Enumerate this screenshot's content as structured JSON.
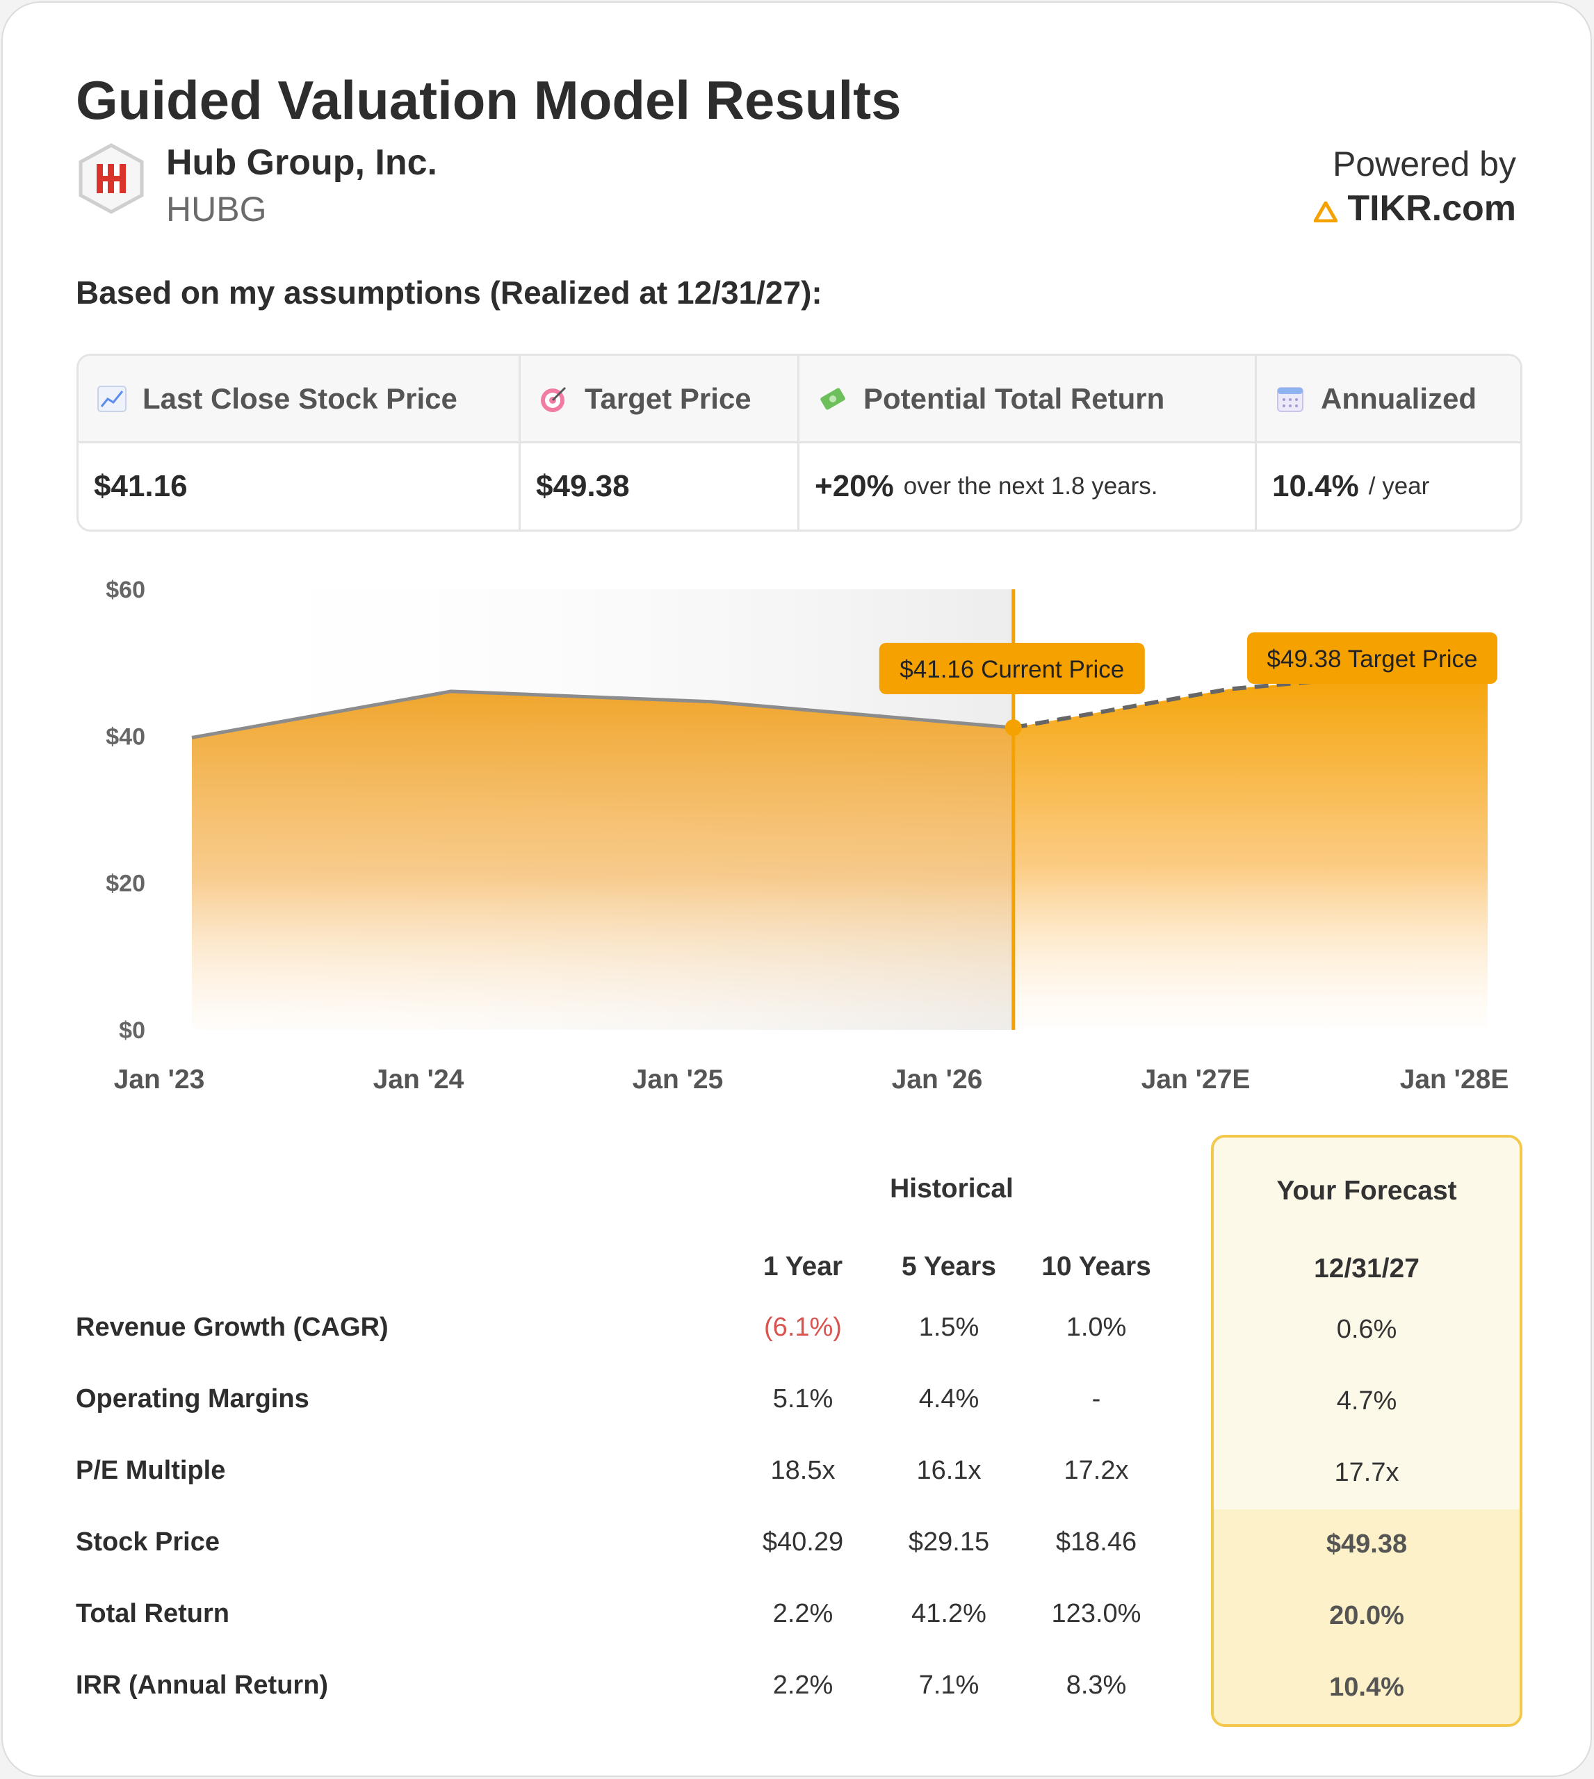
{
  "header": {
    "title": "Guided Valuation Model Results",
    "company_name": "Hub Group, Inc.",
    "ticker": "HUBG",
    "powered_by": "Powered by",
    "brand": "TIKR.com"
  },
  "assumptions_text": "Based on my assumptions (Realized at 12/31/27):",
  "summary": {
    "last_close": {
      "icon": "chart-up-icon",
      "label": "Last Close Stock Price",
      "value": "$41.16"
    },
    "target": {
      "icon": "target-icon",
      "label": "Target Price",
      "value": "$49.38"
    },
    "potential": {
      "icon": "money-icon",
      "label": "Potential Total Return",
      "value": "+20%",
      "suffix": "over the next 1.8 years."
    },
    "annualized": {
      "icon": "calendar-icon",
      "label": "Annualized",
      "value": "10.4%",
      "suffix": "/ year"
    }
  },
  "chart_data": {
    "type": "area",
    "x_labels": [
      "Jan '23",
      "Jan '24",
      "Jan '25",
      "Jan '26",
      "Jan '27E",
      "Jan '28E"
    ],
    "y_ticks": [
      "$60",
      "$40",
      "$20",
      "$0"
    ],
    "ylim": [
      0,
      60
    ],
    "historical": [
      {
        "x": 2023.12,
        "y": 39.8
      },
      {
        "x": 2024.12,
        "y": 46.1
      },
      {
        "x": 2025.12,
        "y": 44.7
      },
      {
        "x": 2026.29,
        "y": 41.16
      }
    ],
    "forecast": [
      {
        "x": 2026.29,
        "y": 41.16
      },
      {
        "x": 2027.12,
        "y": 46.4
      },
      {
        "x": 2027.5,
        "y": 47.6
      },
      {
        "x": 2028.12,
        "y": 49.38
      }
    ],
    "current_label": "$41.16 Current Price",
    "target_label": "$49.38 Target Price",
    "colors": {
      "accent": "#f5a201",
      "line": "#8c8c8c",
      "forecast_line": "#666666"
    }
  },
  "table": {
    "historical_header": "Historical",
    "forecast_header": "Your Forecast",
    "columns": [
      "1 Year",
      "5 Years",
      "10 Years"
    ],
    "forecast_date": "12/31/27",
    "rows": [
      {
        "label": "Revenue Growth (CAGR)",
        "values": [
          "(6.1%)",
          "1.5%",
          "1.0%"
        ],
        "forecast": "0.6%"
      },
      {
        "label": "Operating Margins",
        "values": [
          "5.1%",
          "4.4%",
          "-"
        ],
        "forecast": "4.7%"
      },
      {
        "label": "P/E Multiple",
        "values": [
          "18.5x",
          "16.1x",
          "17.2x"
        ],
        "forecast": "17.7x"
      },
      {
        "label": "Stock Price",
        "values": [
          "$40.29",
          "$29.15",
          "$18.46"
        ],
        "forecast": "$49.38"
      },
      {
        "label": "Total Return",
        "values": [
          "2.2%",
          "41.2%",
          "123.0%"
        ],
        "forecast": "20.0%"
      },
      {
        "label": "IRR (Annual Return)",
        "values": [
          "2.2%",
          "7.1%",
          "8.3%"
        ],
        "forecast": "10.4%"
      }
    ]
  }
}
